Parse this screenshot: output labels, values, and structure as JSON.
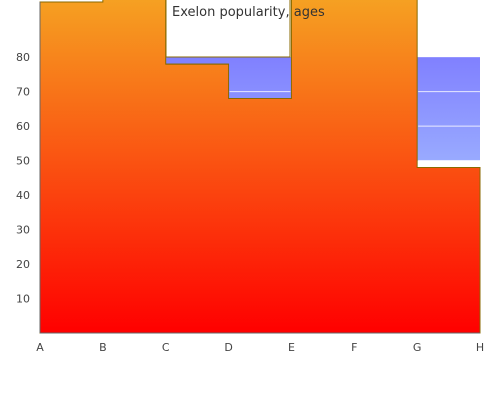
{
  "chart_data": {
    "type": "area",
    "title": "Exelon popularity, ages",
    "xlabel": "",
    "ylabel": "",
    "categories": [
      "A",
      "B",
      "C",
      "D",
      "E",
      "F",
      "G",
      "H"
    ],
    "ylim": [
      0,
      96
    ],
    "y_ticks": [
      10,
      20,
      30,
      40,
      50,
      60,
      70,
      80
    ],
    "grid": false,
    "legend": "none",
    "series": [
      {
        "values": [
          96,
          100,
          78,
          68,
          100,
          100,
          48,
          48
        ],
        "shape": "step",
        "fill_gradient": [
          "#f5a623",
          "#ff0000"
        ]
      }
    ],
    "background_band": {
      "from": 50,
      "to": 80,
      "gradient": [
        "#8080ff",
        "#99aaff"
      ]
    },
    "colors": {
      "area_top": "#f5a623",
      "area_bottom": "#ff0000",
      "band_top": "#8080ff",
      "band_bottom": "#99aaff",
      "outline": "#8a6a00",
      "axis": "#666666"
    }
  }
}
